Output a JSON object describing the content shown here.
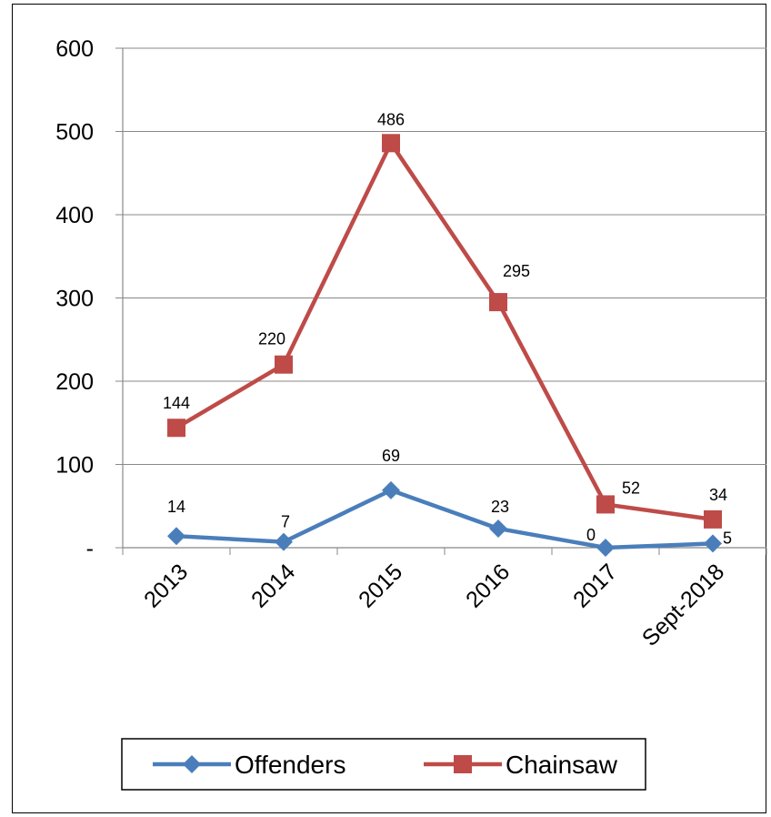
{
  "chart_data": {
    "type": "line",
    "categories": [
      "2013",
      "2014",
      "2015",
      "2016",
      "2017",
      "Sept-2018"
    ],
    "ylim": [
      0,
      600
    ],
    "yticks": [
      {
        "value": 0,
        "label": "-"
      },
      {
        "value": 100,
        "label": "100"
      },
      {
        "value": 200,
        "label": "200"
      },
      {
        "value": 300,
        "label": "300"
      },
      {
        "value": 400,
        "label": "400"
      },
      {
        "value": 500,
        "label": "500"
      },
      {
        "value": 600,
        "label": "600"
      }
    ],
    "grid": true,
    "legend_position": "bottom",
    "series": [
      {
        "name": "Offenders",
        "color": "#4A7EBB",
        "marker": "diamond",
        "values": [
          14,
          7,
          69,
          23,
          0,
          5
        ]
      },
      {
        "name": "Chainsaw",
        "color": "#BE4B48",
        "marker": "square",
        "values": [
          144,
          220,
          486,
          295,
          52,
          34
        ]
      }
    ]
  }
}
